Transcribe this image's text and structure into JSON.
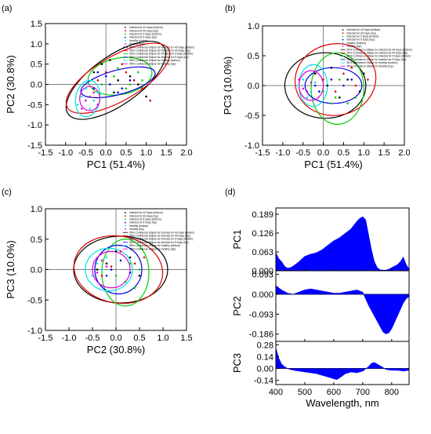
{
  "colors": {
    "infected40_bottom": "#000000",
    "infected40_top": "#e00000",
    "infected5_bottom": "#00d000",
    "infected5_top": "#0000e0",
    "healthy_bottom": "#00e0e0",
    "healthy_top": "#e000e0",
    "spectrum_fill": "#0000ff"
  },
  "legend_entries": [
    "Infected for 40 Days (bottom)",
    "Infected for 40 Days (top)",
    "Infected for 5 Days (bottom)",
    "Infected for 5 Days (top)",
    "Healthy (bottom)",
    "Healthy (top)",
    "95% Confidence Ellipse for Infected for 40 Days (bottom)",
    "95% Confidence Ellipse for Infected for 40 Days (top)",
    "95% Confidence Ellipse for Infected for 5 Days (bottom)",
    "95% Confidence Ellipse for Infected for 5 Days (top)",
    "95% Confidence Ellipse for Healthy (bottom)",
    "95% Confidence Ellipse for Healthy (top)"
  ],
  "chart_data": [
    {
      "panel": "(a)",
      "type": "scatter",
      "xlabel": "PC1 (51.4%)",
      "ylabel": "PC2 (30.8%)",
      "xlim": [
        -1.5,
        2.0
      ],
      "ylim": [
        -1.5,
        1.5
      ],
      "xticks": [
        "-1.5",
        "-1.0",
        "-0.5",
        "0.0",
        "0.5",
        "1.0",
        "1.5",
        "2.0"
      ],
      "yticks": [
        "-1.5",
        "-1.0",
        "-0.5",
        "0.0",
        "0.5",
        "1.0",
        "1.5"
      ],
      "series": [
        {
          "name": "Infected for 40 Days (bottom)",
          "points": [
            [
              -0.3,
              0.3
            ],
            [
              0.1,
              0.6
            ],
            [
              0.6,
              0.2
            ],
            [
              1.0,
              -0.3
            ],
            [
              0.3,
              0.1
            ],
            [
              -0.1,
              0.5
            ],
            [
              0.8,
              0.0
            ],
            [
              0.2,
              -0.2
            ]
          ]
        },
        {
          "name": "Infected for 40 Days (top)",
          "points": [
            [
              0.5,
              0.3
            ],
            [
              0.9,
              -0.1
            ],
            [
              -0.2,
              0.1
            ],
            [
              0.4,
              0.5
            ],
            [
              1.1,
              -0.4
            ],
            [
              0.0,
              0.3
            ],
            [
              0.7,
              0.1
            ]
          ]
        },
        {
          "name": "Infected for 5 Days (bottom)",
          "points": [
            [
              0.2,
              0.2
            ],
            [
              0.5,
              -0.1
            ],
            [
              0.8,
              0.3
            ],
            [
              -0.1,
              0.0
            ],
            [
              0.3,
              0.4
            ],
            [
              0.6,
              0.0
            ],
            [
              0.9,
              0.1
            ]
          ]
        },
        {
          "name": "Infected for 5 Days (top)",
          "points": [
            [
              -0.3,
              -0.1
            ],
            [
              0.0,
              0.2
            ],
            [
              0.3,
              -0.2
            ],
            [
              0.6,
              0.1
            ],
            [
              0.1,
              0.0
            ],
            [
              -0.2,
              0.3
            ],
            [
              0.4,
              -0.1
            ]
          ]
        },
        {
          "name": "Healthy (bottom)",
          "points": [
            [
              -0.6,
              -0.3
            ],
            [
              -0.4,
              -0.6
            ],
            [
              -0.5,
              -0.1
            ],
            [
              -0.3,
              -0.4
            ],
            [
              -0.7,
              -0.5
            ],
            [
              -0.2,
              -0.2
            ]
          ]
        },
        {
          "name": "Healthy (top)",
          "points": [
            [
              -0.5,
              -0.4
            ],
            [
              -0.3,
              -0.2
            ],
            [
              -0.6,
              -0.6
            ],
            [
              -0.4,
              -0.3
            ],
            [
              -0.2,
              -0.5
            ]
          ]
        }
      ],
      "ellipses": [
        {
          "name": "95% Confidence Ellipse for Infected for 40 Days (bottom)",
          "cx": 0.25,
          "cy": 0.1,
          "rx": 1.45,
          "ry": 0.6,
          "angle_deg": -35
        },
        {
          "name": "95% Confidence Ellipse for Infected for 40 Days (top)",
          "cx": 0.3,
          "cy": 0.15,
          "rx": 1.45,
          "ry": 0.55,
          "angle_deg": -30
        },
        {
          "name": "95% Confidence Ellipse for Infected for 5 Days (bottom)",
          "cx": 0.35,
          "cy": 0.2,
          "rx": 0.8,
          "ry": 0.45,
          "angle_deg": -10
        },
        {
          "name": "95% Confidence Ellipse for Infected for 5 Days (top)",
          "cx": 0.3,
          "cy": 0.05,
          "rx": 0.95,
          "ry": 0.3,
          "angle_deg": -15
        },
        {
          "name": "95% Confidence Ellipse for Healthy (bottom)",
          "cx": -0.45,
          "cy": -0.35,
          "rx": 0.3,
          "ry": 0.45,
          "angle_deg": 10
        },
        {
          "name": "95% Confidence Ellipse for Healthy (top)",
          "cx": -0.4,
          "cy": -0.35,
          "rx": 0.25,
          "ry": 0.3,
          "angle_deg": 0
        }
      ]
    },
    {
      "panel": "(b)",
      "type": "scatter",
      "xlabel": "PC1 (51.4%)",
      "ylabel": "PC3 (10.0%)",
      "xlim": [
        -1.5,
        2.0
      ],
      "ylim": [
        -1.0,
        1.0
      ],
      "xticks": [
        "-1.5",
        "-1.0",
        "-0.5",
        "0.0",
        "0.5",
        "1.0",
        "1.5",
        "2.0"
      ],
      "yticks": [
        "-1.0",
        "-0.5",
        "0.0",
        "0.5",
        "1.0"
      ],
      "series": [
        {
          "name": "Infected for 40 Days (bottom)",
          "points": [
            [
              0.2,
              0.3
            ],
            [
              0.6,
              0.1
            ],
            [
              0.9,
              -0.1
            ],
            [
              -0.2,
              0.2
            ],
            [
              0.4,
              -0.2
            ],
            [
              1.0,
              0.2
            ],
            [
              0.1,
              0.0
            ]
          ]
        },
        {
          "name": "Infected for 40 Days (top)",
          "points": [
            [
              0.5,
              0.2
            ],
            [
              0.8,
              0.0
            ],
            [
              0.0,
              0.1
            ],
            [
              0.3,
              -0.1
            ],
            [
              1.1,
              0.1
            ],
            [
              0.7,
              0.3
            ]
          ]
        },
        {
          "name": "Infected for 5 Days (bottom)",
          "points": [
            [
              0.3,
              -0.2
            ],
            [
              0.6,
              -0.3
            ],
            [
              0.0,
              -0.1
            ],
            [
              0.8,
              -0.2
            ],
            [
              0.4,
              0.1
            ],
            [
              0.2,
              -0.3
            ]
          ]
        },
        {
          "name": "Infected for 5 Days (top)",
          "points": [
            [
              -0.2,
              0.0
            ],
            [
              0.2,
              0.1
            ],
            [
              0.5,
              0.0
            ],
            [
              -0.1,
              -0.1
            ],
            [
              0.7,
              0.1
            ]
          ]
        },
        {
          "name": "Healthy (bottom)",
          "points": [
            [
              -0.6,
              0.0
            ],
            [
              -0.4,
              -0.2
            ],
            [
              -0.5,
              0.1
            ],
            [
              -0.3,
              -0.1
            ],
            [
              -0.2,
              0.05
            ]
          ]
        },
        {
          "name": "Healthy (top)",
          "points": [
            [
              -0.5,
              -0.05
            ],
            [
              -0.3,
              0.05
            ],
            [
              -0.6,
              0.1
            ],
            [
              -0.4,
              -0.1
            ]
          ]
        }
      ],
      "ellipses": [
        {
          "name": "95% Confidence Ellipse for Infected for 40 Days (bottom)",
          "cx": 0.05,
          "cy": 0.0,
          "rx": 1.0,
          "ry": 0.55,
          "angle_deg": 0
        },
        {
          "name": "95% Confidence Ellipse for Infected for 40 Days (top)",
          "cx": 0.3,
          "cy": 0.1,
          "rx": 1.0,
          "ry": 0.6,
          "angle_deg": -10
        },
        {
          "name": "95% Confidence Ellipse for Infected for 5 Days (bottom)",
          "cx": 0.35,
          "cy": -0.05,
          "rx": 0.65,
          "ry": 0.6,
          "angle_deg": 0
        },
        {
          "name": "95% Confidence Ellipse for Infected for 5 Days (top)",
          "cx": 0.25,
          "cy": 0.0,
          "rx": 0.7,
          "ry": 0.3,
          "angle_deg": 0
        },
        {
          "name": "95% Confidence Ellipse for Healthy (bottom)",
          "cx": -0.25,
          "cy": 0.0,
          "rx": 0.35,
          "ry": 0.35,
          "angle_deg": 0
        },
        {
          "name": "95% Confidence Ellipse for Healthy (top)",
          "cx": -0.3,
          "cy": 0.0,
          "rx": 0.3,
          "ry": 0.25,
          "angle_deg": 0
        }
      ]
    },
    {
      "panel": "(c)",
      "type": "scatter",
      "xlabel": "PC2 (30.8%)",
      "ylabel": "PC3 (10.0%)",
      "xlim": [
        -1.5,
        1.5
      ],
      "ylim": [
        -1.0,
        1.0
      ],
      "xticks": [
        "-1.5",
        "-1.0",
        "-0.5",
        "0.0",
        "0.5",
        "1.0",
        "1.5"
      ],
      "yticks": [
        "-1.0",
        "-0.5",
        "0.0",
        "0.5",
        "1.0"
      ],
      "series": [
        {
          "name": "Infected for 40 Days (bottom)",
          "points": [
            [
              0.3,
              0.2
            ],
            [
              -0.2,
              0.1
            ],
            [
              0.5,
              -0.1
            ],
            [
              0.0,
              0.3
            ],
            [
              -0.4,
              0.0
            ],
            [
              0.2,
              -0.2
            ]
          ]
        },
        {
          "name": "Infected for 40 Days (top)",
          "points": [
            [
              0.1,
              0.3
            ],
            [
              -0.3,
              -0.1
            ],
            [
              0.4,
              0.1
            ],
            [
              -0.1,
              0.05
            ],
            [
              0.6,
              0.2
            ]
          ]
        },
        {
          "name": "Infected for 5 Days (bottom)",
          "points": [
            [
              0.2,
              -0.2
            ],
            [
              0.4,
              -0.3
            ],
            [
              0.0,
              -0.1
            ],
            [
              0.5,
              0.0
            ],
            [
              0.3,
              0.1
            ]
          ]
        },
        {
          "name": "Infected for 5 Days (top)",
          "points": [
            [
              -0.1,
              0.0
            ],
            [
              0.1,
              0.15
            ],
            [
              0.3,
              -0.05
            ],
            [
              -0.2,
              -0.1
            ]
          ]
        },
        {
          "name": "Healthy (bottom)",
          "points": [
            [
              -0.3,
              0.0
            ],
            [
              -0.5,
              -0.1
            ],
            [
              -0.2,
              0.2
            ],
            [
              -0.4,
              0.1
            ]
          ]
        },
        {
          "name": "Healthy (top)",
          "points": [
            [
              -0.4,
              -0.05
            ],
            [
              -0.2,
              0.05
            ],
            [
              -0.3,
              0.15
            ]
          ]
        }
      ],
      "ellipses": [
        {
          "name": "95% Confidence Ellipse for Infected for 40 Days (bottom)",
          "cx": 0.1,
          "cy": 0.0,
          "rx": 1.0,
          "ry": 0.55,
          "angle_deg": 0
        },
        {
          "name": "95% Confidence Ellipse for Infected for 40 Days (top)",
          "cx": 0.05,
          "cy": 0.0,
          "rx": 0.95,
          "ry": 0.55,
          "angle_deg": 10
        },
        {
          "name": "95% Confidence Ellipse for Infected for 5 Days (bottom)",
          "cx": 0.2,
          "cy": -0.05,
          "rx": 0.5,
          "ry": 0.55,
          "angle_deg": 0
        },
        {
          "name": "95% Confidence Ellipse for Infected for 5 Days (top)",
          "cx": 0.05,
          "cy": 0.0,
          "rx": 0.5,
          "ry": 0.4,
          "angle_deg": 0
        },
        {
          "name": "95% Confidence Ellipse for Healthy (bottom)",
          "cx": -0.15,
          "cy": 0.0,
          "rx": 0.5,
          "ry": 0.35,
          "angle_deg": 0
        },
        {
          "name": "95% Confidence Ellipse for Healthy (top)",
          "cx": -0.1,
          "cy": 0.0,
          "rx": 0.4,
          "ry": 0.3,
          "angle_deg": 0
        }
      ]
    },
    {
      "panel": "(d)",
      "type": "area",
      "xlabel": "Wavelength, nm",
      "xlim": [
        400,
        860
      ],
      "xticks": [
        "400",
        "500",
        "600",
        "700",
        "800"
      ],
      "subplots": [
        {
          "ylabel": "PC1",
          "ylim": [
            0.0,
            0.21
          ],
          "yticks": [
            "0.000",
            "0.063",
            "0.126",
            "0.189"
          ],
          "x": [
            400,
            410,
            420,
            430,
            440,
            450,
            460,
            480,
            500,
            520,
            540,
            560,
            580,
            600,
            620,
            640,
            660,
            680,
            690,
            700,
            710,
            720,
            730,
            740,
            750,
            760,
            770,
            780,
            790,
            800,
            810,
            820,
            830,
            840,
            850,
            860
          ],
          "values": [
            0.06,
            0.04,
            0.03,
            0.015,
            0.008,
            0.01,
            0.015,
            0.03,
            0.048,
            0.055,
            0.06,
            0.07,
            0.085,
            0.1,
            0.11,
            0.125,
            0.14,
            0.165,
            0.175,
            0.18,
            0.17,
            0.12,
            0.07,
            0.03,
            0.01,
            0.003,
            0.002,
            0.002,
            0.005,
            0.01,
            0.015,
            0.02,
            0.03,
            0.045,
            0.02,
            0.005
          ]
        },
        {
          "ylabel": "PC2",
          "ylim": [
            -0.22,
            0.11
          ],
          "yticks": [
            "0.093",
            "0.000",
            "-0.093",
            "-0.186"
          ],
          "x": [
            400,
            420,
            440,
            460,
            480,
            500,
            520,
            540,
            560,
            580,
            600,
            620,
            640,
            660,
            680,
            700,
            720,
            740,
            760,
            770,
            780,
            790,
            800,
            810,
            820,
            830,
            840,
            850,
            860
          ],
          "values": [
            0.04,
            0.02,
            0.005,
            0.0,
            0.01,
            0.02,
            0.025,
            0.02,
            0.015,
            0.01,
            0.005,
            0.005,
            0.01,
            0.015,
            0.02,
            0.01,
            -0.05,
            -0.1,
            -0.15,
            -0.175,
            -0.185,
            -0.18,
            -0.16,
            -0.13,
            -0.1,
            -0.07,
            -0.04,
            -0.02,
            -0.01
          ]
        },
        {
          "ylabel": "PC3",
          "ylim": [
            -0.19,
            0.32
          ],
          "yticks": [
            "0.28",
            "0.14",
            "0.00",
            "-0.14"
          ],
          "x": [
            400,
            405,
            410,
            420,
            430,
            440,
            460,
            480,
            500,
            520,
            540,
            560,
            580,
            600,
            610,
            620,
            640,
            660,
            680,
            700,
            720,
            730,
            740,
            760,
            780,
            800,
            820,
            840,
            860
          ],
          "values": [
            0.24,
            0.18,
            0.12,
            0.05,
            0.02,
            0.0,
            -0.02,
            -0.03,
            -0.04,
            -0.05,
            -0.06,
            -0.08,
            -0.1,
            -0.12,
            -0.13,
            -0.11,
            -0.06,
            -0.04,
            -0.05,
            -0.03,
            0.02,
            0.06,
            0.07,
            0.03,
            -0.01,
            -0.02,
            -0.02,
            -0.03,
            -0.02
          ]
        }
      ]
    }
  ]
}
